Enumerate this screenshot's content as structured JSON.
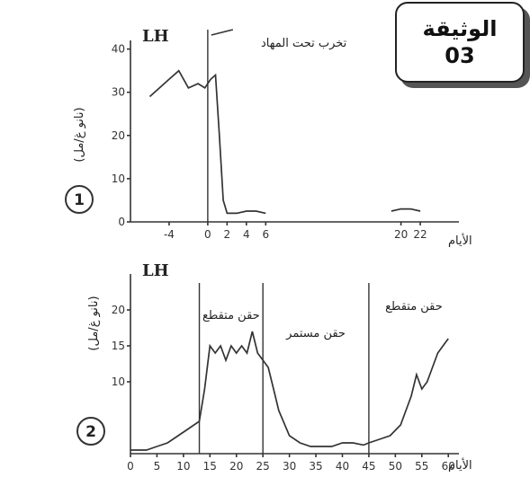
{
  "document": {
    "title": "الوثيقة",
    "number": "03"
  },
  "chart_data": [
    {
      "type": "line",
      "panel_number": "1",
      "title": "LH",
      "ylabel": "(نانو غ/مل)",
      "xlabel": "الأيام",
      "annotation": "تخرب تحت المهاد",
      "annotation_x": 0,
      "xlim": [
        -8,
        26
      ],
      "ylim": [
        0,
        42
      ],
      "x_ticks": [
        -4,
        0,
        2,
        4,
        6,
        20,
        22
      ],
      "y_ticks": [
        0,
        10,
        20,
        30,
        40
      ],
      "series": [
        {
          "x": [
            -6,
            -4,
            -3,
            -2,
            -1,
            -0.3,
            0.3,
            0.8,
            1.2,
            1.6,
            2,
            3,
            4,
            5,
            6
          ],
          "y": [
            29,
            33,
            35,
            31,
            32,
            31,
            33,
            34,
            20,
            5,
            2,
            2,
            2.5,
            2.5,
            2
          ]
        },
        {
          "x": [
            19,
            20,
            21,
            22
          ],
          "y": [
            2.5,
            3,
            3,
            2.5
          ]
        }
      ]
    },
    {
      "type": "line",
      "panel_number": "2",
      "title": "LH",
      "ylabel": "(نانو غ/مل)",
      "xlabel": "الأيام",
      "xlim": [
        0,
        62
      ],
      "ylim": [
        0,
        25
      ],
      "x_ticks": [
        0,
        5,
        10,
        15,
        20,
        25,
        30,
        35,
        40,
        45,
        50,
        55,
        60
      ],
      "y_ticks": [
        10,
        15,
        20
      ],
      "regions": [
        {
          "label": "حقن متقطع",
          "from": 13,
          "to": 25
        },
        {
          "label": "حقن مستمر",
          "from": 25,
          "to": 45
        },
        {
          "label": "حقن متقطع",
          "from": 45,
          "to": 62
        }
      ],
      "boundaries": [
        13,
        25,
        45
      ],
      "series": [
        {
          "x": [
            0,
            3,
            5,
            7,
            9,
            11,
            13,
            14,
            15,
            16,
            17,
            18,
            19,
            20,
            21,
            22,
            23,
            24,
            25,
            26,
            27,
            28,
            30,
            32,
            34,
            36,
            38,
            40,
            42,
            44,
            45,
            47,
            49,
            51,
            52,
            53,
            54,
            55,
            56,
            57,
            58,
            59,
            60
          ],
          "y": [
            0.5,
            0.5,
            1,
            1.5,
            2.5,
            3.5,
            4.5,
            9,
            15,
            14,
            15,
            13,
            15,
            14,
            15,
            14,
            17,
            14,
            13,
            12,
            9,
            6,
            2.5,
            1.5,
            1,
            1,
            1,
            1.5,
            1.5,
            1.2,
            1.5,
            2,
            2.5,
            4,
            6,
            8,
            11,
            9,
            10,
            12,
            14,
            15,
            16
          ]
        }
      ]
    }
  ]
}
